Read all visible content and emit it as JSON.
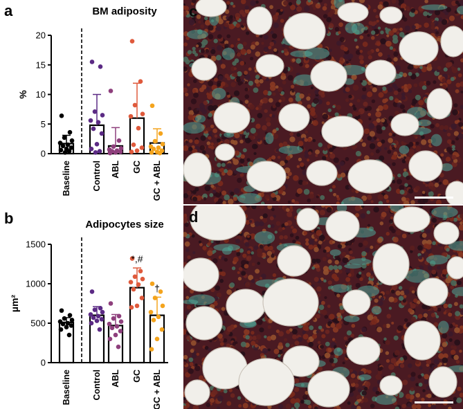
{
  "panels": {
    "a": {
      "letter": "a"
    },
    "b": {
      "letter": "b"
    },
    "c": {
      "letter": "c"
    },
    "d": {
      "letter": "d"
    }
  },
  "colors": {
    "baseline": "#000000",
    "control": "#5b2a84",
    "abl": "#8e3f7c",
    "gc": "#df5a3c",
    "gc_abl": "#f4a41d",
    "stain_red": "#7a2a1c",
    "stain_fat": "#f1efea",
    "stain_green": "#4fa598"
  },
  "chart_data": [
    {
      "id": "a",
      "type": "bar",
      "title": "BM adiposity",
      "xlabel": "",
      "ylabel": "%",
      "ylim": [
        0,
        20
      ],
      "yticks": [
        "0",
        "5",
        "10",
        "15",
        "20"
      ],
      "categories": [
        "Baseline",
        "Control",
        "ABL",
        "GC",
        "GC + ABL"
      ],
      "means": [
        1.7,
        4.8,
        1.3,
        6.0,
        1.8
      ],
      "sd_upper": [
        3.1,
        10.0,
        4.4,
        11.9,
        4.2
      ],
      "points": [
        [
          6.4,
          3.6,
          2.7,
          2.2,
          1.8,
          1.5,
          1.3,
          1.0,
          0.8,
          0.6,
          0.4,
          0.2
        ],
        [
          15.5,
          14.7,
          7.1,
          6.5,
          5.6,
          5.3,
          4.2,
          3.4,
          1.6,
          0.8,
          0.4,
          0.2
        ],
        [
          10.6,
          2.2,
          1.2,
          0.9,
          0.7,
          0.5,
          0.4,
          0.3,
          0.2,
          0.1
        ],
        [
          19.0,
          12.2,
          8.2,
          6.7,
          6.3,
          4.3,
          1.5,
          1.0,
          0.5,
          0.3
        ],
        [
          8.1,
          3.4,
          2.1,
          1.6,
          1.2,
          1.0,
          0.8,
          0.5,
          0.3,
          0.2,
          0.1
        ]
      ],
      "annotations": [
        "",
        "",
        "",
        "",
        ""
      ]
    },
    {
      "id": "b",
      "type": "bar",
      "title": "Adipocytes size",
      "xlabel": "",
      "ylabel": "µm²",
      "ylim": [
        0,
        1500
      ],
      "yticks": [
        "0",
        "500",
        "1000",
        "1500"
      ],
      "categories": [
        "Baseline",
        "Control",
        "ABL",
        "GC",
        "GC + ABL"
      ],
      "means": [
        510,
        600,
        470,
        950,
        600
      ],
      "sd_upper": [
        570,
        710,
        610,
        1200,
        830
      ],
      "points": [
        [
          660,
          600,
          560,
          540,
          520,
          500,
          490,
          470,
          450,
          420,
          350
        ],
        [
          900,
          690,
          670,
          640,
          610,
          590,
          570,
          550,
          530,
          500,
          420
        ],
        [
          750,
          590,
          560,
          520,
          490,
          460,
          440,
          400,
          350,
          300,
          200
        ],
        [
          1320,
          1160,
          1090,
          1060,
          1020,
          990,
          930,
          820,
          720,
          700
        ],
        [
          1000,
          900,
          820,
          720,
          640,
          580,
          540,
          420,
          300,
          170
        ]
      ],
      "annotations": [
        "",
        "",
        "",
        "*,#",
        "†"
      ]
    }
  ]
}
